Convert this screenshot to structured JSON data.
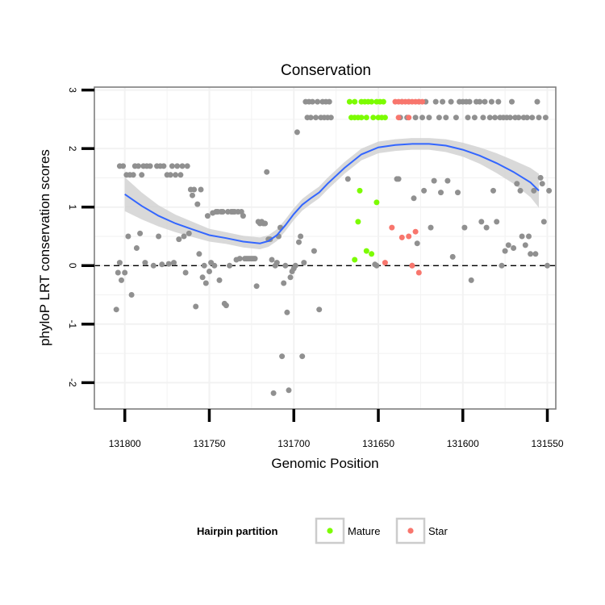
{
  "chart_data": {
    "type": "scatter",
    "title": "Conservation",
    "xlabel": "Genomic Position",
    "ylabel": "phyloP LRT conservation scores",
    "xlim": [
      131818,
      131545
    ],
    "ylim": [
      -2.45,
      3.05
    ],
    "x_reversed": true,
    "x_ticks": [
      131800,
      131750,
      131700,
      131650,
      131600,
      131550
    ],
    "x_tick_labels": [
      "131800",
      "131750",
      "131700",
      "131650",
      "131600",
      "131550"
    ],
    "y_ticks": [
      -2,
      -1,
      0,
      1,
      2,
      3
    ],
    "y_tick_labels": [
      "-2",
      "-1",
      "0",
      "1",
      "2",
      "3"
    ],
    "reference_line": {
      "y": 0,
      "style": "dashed"
    },
    "legend": {
      "title": "Hairpin partition",
      "position": "bottom",
      "entries": [
        {
          "label": "Mature",
          "color": "#7cfc00"
        },
        {
          "label": "Star",
          "color": "#f8766d"
        }
      ]
    },
    "colors": {
      "other": "#909090",
      "Mature": "#7cfc00",
      "Star": "#f8766d",
      "smooth_line": "#3366ff",
      "smooth_band": "#d2d2d2",
      "panel_border": "#7f7f7f",
      "grid": "#f2f2f2"
    },
    "series": [
      {
        "name": "Other",
        "points": [
          [
            131805,
            -0.75
          ],
          [
            131804,
            -0.12
          ],
          [
            131803,
            1.7
          ],
          [
            131803,
            0.05
          ],
          [
            131802,
            -0.25
          ],
          [
            131801,
            1.7
          ],
          [
            131800,
            -0.12
          ],
          [
            131799,
            1.55
          ],
          [
            131798,
            0.5
          ],
          [
            131797,
            1.55
          ],
          [
            131796,
            -0.5
          ],
          [
            131795,
            1.55
          ],
          [
            131794,
            1.7
          ],
          [
            131793,
            0.3
          ],
          [
            131792,
            1.7
          ],
          [
            131791,
            0.55
          ],
          [
            131790,
            1.55
          ],
          [
            131789,
            1.7
          ],
          [
            131788,
            0.05
          ],
          [
            131787,
            1.7
          ],
          [
            131785,
            1.7
          ],
          [
            131783,
            0.0
          ],
          [
            131781,
            1.7
          ],
          [
            131780,
            0.5
          ],
          [
            131779,
            1.7
          ],
          [
            131778,
            0.02
          ],
          [
            131777,
            1.7
          ],
          [
            131775,
            1.55
          ],
          [
            131774,
            0.03
          ],
          [
            131773,
            1.55
          ],
          [
            131772,
            1.7
          ],
          [
            131771,
            0.05
          ],
          [
            131770,
            1.55
          ],
          [
            131769,
            1.7
          ],
          [
            131768,
            0.45
          ],
          [
            131767,
            1.55
          ],
          [
            131766,
            1.7
          ],
          [
            131765,
            0.5
          ],
          [
            131764,
            -0.12
          ],
          [
            131763,
            1.7
          ],
          [
            131762,
            0.55
          ],
          [
            131761,
            1.3
          ],
          [
            131760,
            1.2
          ],
          [
            131759,
            1.3
          ],
          [
            131758,
            -0.7
          ],
          [
            131757,
            1.05
          ],
          [
            131756,
            0.2
          ],
          [
            131755,
            1.3
          ],
          [
            131754,
            -0.2
          ],
          [
            131753,
            0.0
          ],
          [
            131752,
            -0.3
          ],
          [
            131751,
            0.85
          ],
          [
            131750,
            -0.1
          ],
          [
            131749,
            0.05
          ],
          [
            131748,
            0.9
          ],
          [
            131747,
            0.0
          ],
          [
            131746,
            0.92
          ],
          [
            131745,
            0.92
          ],
          [
            131744,
            -0.25
          ],
          [
            131743,
            0.92
          ],
          [
            131742,
            0.92
          ],
          [
            131741,
            -0.65
          ],
          [
            131740,
            -0.68
          ],
          [
            131739,
            0.92
          ],
          [
            131738,
            0.0
          ],
          [
            131737,
            0.92
          ],
          [
            131736,
            0.92
          ],
          [
            131735,
            0.92
          ],
          [
            131734,
            0.1
          ],
          [
            131733,
            0.92
          ],
          [
            131732,
            0.12
          ],
          [
            131731,
            0.92
          ],
          [
            131730,
            0.85
          ],
          [
            131729,
            0.12
          ],
          [
            131728,
            0.12
          ],
          [
            131727,
            0.12
          ],
          [
            131726,
            0.12
          ],
          [
            131725,
            0.12
          ],
          [
            131724,
            0.12
          ],
          [
            131723,
            0.12
          ],
          [
            131722,
            -0.35
          ],
          [
            131721,
            0.75
          ],
          [
            131720,
            0.72
          ],
          [
            131719,
            0.75
          ],
          [
            131718,
            0.72
          ],
          [
            131717,
            0.72
          ],
          [
            131716,
            1.6
          ],
          [
            131715,
            0.45
          ],
          [
            131714,
            0.45
          ],
          [
            131713,
            0.1
          ],
          [
            131712,
            -2.18
          ],
          [
            131711,
            0.0
          ],
          [
            131710,
            0.05
          ],
          [
            131709,
            0.5
          ],
          [
            131708,
            0.65
          ],
          [
            131707,
            -1.55
          ],
          [
            131706,
            -0.3
          ],
          [
            131705,
            0.0
          ],
          [
            131704,
            -0.8
          ],
          [
            131703,
            -2.13
          ],
          [
            131702,
            -0.2
          ],
          [
            131701,
            -0.1
          ],
          [
            131700,
            -0.05
          ],
          [
            131699,
            0.0
          ],
          [
            131698,
            2.28
          ],
          [
            131697,
            0.4
          ],
          [
            131696,
            0.5
          ],
          [
            131695,
            -1.55
          ],
          [
            131694,
            0.05
          ],
          [
            131693,
            2.8
          ],
          [
            131692,
            2.53
          ],
          [
            131691,
            2.8
          ],
          [
            131690,
            2.53
          ],
          [
            131689,
            2.8
          ],
          [
            131688,
            0.25
          ],
          [
            131687,
            2.53
          ],
          [
            131686,
            2.8
          ],
          [
            131685,
            -0.75
          ],
          [
            131684,
            2.53
          ],
          [
            131683,
            2.8
          ],
          [
            131682,
            2.53
          ],
          [
            131681,
            2.8
          ],
          [
            131680,
            2.53
          ],
          [
            131679,
            2.8
          ],
          [
            131678,
            2.53
          ],
          [
            131668,
            1.48
          ],
          [
            131652,
            0.02
          ],
          [
            131651,
            0.0
          ],
          [
            131639,
            1.48
          ],
          [
            131638,
            1.48
          ],
          [
            131637,
            2.53
          ],
          [
            131636,
            2.8
          ],
          [
            131633,
            2.53
          ],
          [
            131632,
            2.8
          ],
          [
            131630,
            0.0
          ],
          [
            131629,
            1.15
          ],
          [
            131628,
            2.53
          ],
          [
            131627,
            0.38
          ],
          [
            131626,
            2.8
          ],
          [
            131624,
            2.53
          ],
          [
            131623,
            1.28
          ],
          [
            131622,
            2.8
          ],
          [
            131620,
            2.53
          ],
          [
            131619,
            0.65
          ],
          [
            131617,
            1.45
          ],
          [
            131616,
            2.8
          ],
          [
            131614,
            2.53
          ],
          [
            131613,
            1.25
          ],
          [
            131612,
            2.8
          ],
          [
            131610,
            2.53
          ],
          [
            131609,
            1.45
          ],
          [
            131607,
            2.8
          ],
          [
            131606,
            0.15
          ],
          [
            131604,
            2.53
          ],
          [
            131603,
            1.25
          ],
          [
            131602,
            2.8
          ],
          [
            131600,
            2.8
          ],
          [
            131599,
            0.65
          ],
          [
            131598,
            2.8
          ],
          [
            131597,
            2.53
          ],
          [
            131596,
            2.8
          ],
          [
            131595,
            -0.25
          ],
          [
            131593,
            2.53
          ],
          [
            131592,
            2.8
          ],
          [
            131590,
            2.8
          ],
          [
            131589,
            0.75
          ],
          [
            131588,
            2.53
          ],
          [
            131587,
            2.8
          ],
          [
            131586,
            0.65
          ],
          [
            131584,
            2.53
          ],
          [
            131583,
            2.8
          ],
          [
            131582,
            1.28
          ],
          [
            131581,
            2.53
          ],
          [
            131580,
            0.75
          ],
          [
            131579,
            2.8
          ],
          [
            131578,
            2.53
          ],
          [
            131577,
            0.0
          ],
          [
            131576,
            2.53
          ],
          [
            131575,
            0.25
          ],
          [
            131574,
            2.53
          ],
          [
            131573,
            0.35
          ],
          [
            131572,
            2.53
          ],
          [
            131571,
            2.8
          ],
          [
            131570,
            0.3
          ],
          [
            131569,
            2.53
          ],
          [
            131568,
            1.4
          ],
          [
            131567,
            2.53
          ],
          [
            131566,
            1.28
          ],
          [
            131565,
            0.5
          ],
          [
            131564,
            2.53
          ],
          [
            131563,
            0.35
          ],
          [
            131562,
            2.53
          ],
          [
            131561,
            0.5
          ],
          [
            131560,
            0.2
          ],
          [
            131559,
            2.53
          ],
          [
            131558,
            1.28
          ],
          [
            131557,
            0.2
          ],
          [
            131556,
            2.8
          ],
          [
            131555,
            2.53
          ],
          [
            131554,
            1.5
          ],
          [
            131553,
            1.4
          ],
          [
            131552,
            0.75
          ],
          [
            131551,
            2.53
          ],
          [
            131550,
            0.0
          ],
          [
            131549,
            1.28
          ]
        ]
      },
      {
        "name": "Mature",
        "points": [
          [
            131667,
            2.8
          ],
          [
            131666,
            2.53
          ],
          [
            131664,
            2.8
          ],
          [
            131664,
            2.53
          ],
          [
            131662,
            2.53
          ],
          [
            131660,
            2.53
          ],
          [
            131660,
            2.8
          ],
          [
            131658,
            2.8
          ],
          [
            131657,
            2.53
          ],
          [
            131656,
            2.8
          ],
          [
            131654,
            2.8
          ],
          [
            131653,
            2.53
          ],
          [
            131651,
            2.8
          ],
          [
            131650,
            2.53
          ],
          [
            131649,
            2.8
          ],
          [
            131648,
            2.53
          ],
          [
            131647,
            2.8
          ],
          [
            131646,
            2.53
          ],
          [
            131664,
            0.1
          ],
          [
            131661,
            1.28
          ],
          [
            131662,
            0.75
          ],
          [
            131657,
            0.25
          ],
          [
            131654,
            0.2
          ],
          [
            131651,
            1.08
          ]
        ]
      },
      {
        "name": "Star",
        "points": [
          [
            131640,
            2.8
          ],
          [
            131638,
            2.53
          ],
          [
            131638,
            2.8
          ],
          [
            131636,
            2.8
          ],
          [
            131634,
            2.8
          ],
          [
            131632,
            2.53
          ],
          [
            131632,
            2.8
          ],
          [
            131630,
            2.8
          ],
          [
            131628,
            2.8
          ],
          [
            131626,
            2.8
          ],
          [
            131624,
            2.8
          ],
          [
            131646,
            0.05
          ],
          [
            131642,
            0.65
          ],
          [
            131636,
            0.48
          ],
          [
            131632,
            0.5
          ],
          [
            131630,
            0.0
          ],
          [
            131628,
            0.58
          ],
          [
            131626,
            -0.12
          ]
        ]
      }
    ],
    "smooth": {
      "method": "loess",
      "x": [
        131800,
        131790,
        131780,
        131770,
        131760,
        131750,
        131740,
        131730,
        131720,
        131715,
        131710,
        131705,
        131700,
        131695,
        131690,
        131685,
        131680,
        131670,
        131660,
        131650,
        131640,
        131630,
        131620,
        131610,
        131600,
        131590,
        131580,
        131570,
        131560,
        131555
      ],
      "y": [
        1.22,
        1.02,
        0.85,
        0.72,
        0.62,
        0.52,
        0.47,
        0.41,
        0.38,
        0.42,
        0.52,
        0.69,
        0.88,
        1.04,
        1.15,
        1.25,
        1.4,
        1.67,
        1.9,
        2.02,
        2.06,
        2.08,
        2.08,
        2.05,
        1.98,
        1.88,
        1.75,
        1.6,
        1.42,
        1.28
      ],
      "se_halfwidth": [
        0.29,
        0.23,
        0.18,
        0.15,
        0.13,
        0.11,
        0.1,
        0.1,
        0.1,
        0.1,
        0.1,
        0.1,
        0.1,
        0.1,
        0.1,
        0.1,
        0.1,
        0.1,
        0.1,
        0.1,
        0.1,
        0.1,
        0.1,
        0.11,
        0.12,
        0.14,
        0.17,
        0.2,
        0.25,
        0.29
      ]
    }
  }
}
